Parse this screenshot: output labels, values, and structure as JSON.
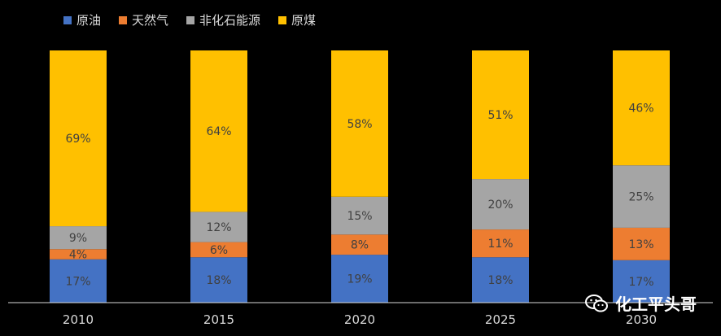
{
  "chart_data": {
    "type": "bar",
    "stacked": true,
    "categories": [
      "2010",
      "2015",
      "2020",
      "2025",
      "2030"
    ],
    "series": [
      {
        "name": "原油",
        "color": "#4472c4",
        "values": [
          17,
          18,
          19,
          18,
          17
        ],
        "labels": [
          "17%",
          "18%",
          "19%",
          "18%",
          "17%"
        ]
      },
      {
        "name": "天然气",
        "color": "#ed7d31",
        "values": [
          4,
          6,
          8,
          11,
          13
        ],
        "labels": [
          "4%",
          "6%",
          "8%",
          "11%",
          "13%"
        ]
      },
      {
        "name": "非化石能源",
        "color": "#a5a5a5",
        "values": [
          9,
          12,
          15,
          20,
          25
        ],
        "labels": [
          "9%",
          "12%",
          "15%",
          "20%",
          "25%"
        ]
      },
      {
        "name": "原煤",
        "color": "#ffc000",
        "values": [
          69,
          64,
          58,
          51,
          46
        ],
        "labels": [
          "69%",
          "64%",
          "58%",
          "51%",
          "46%"
        ]
      }
    ],
    "ylim": [
      0,
      100
    ],
    "legend_position": "top-left",
    "grid": false
  },
  "watermark": {
    "text": "化工平头哥",
    "icon": "wechat-icon"
  }
}
